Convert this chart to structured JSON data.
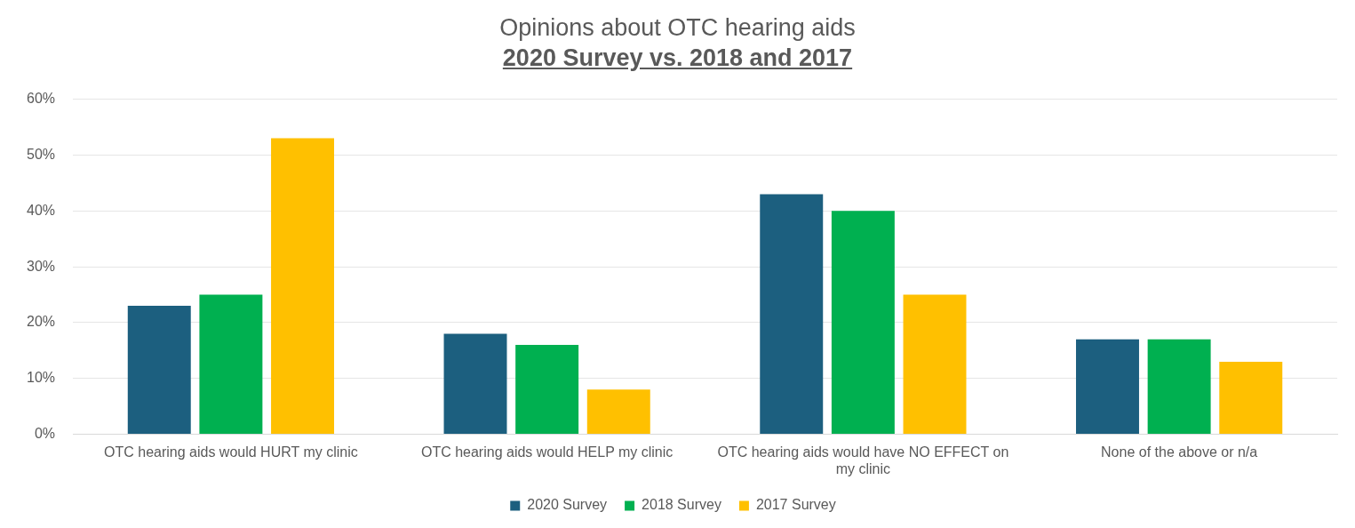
{
  "chart_data": {
    "type": "bar",
    "title": "Opinions about OTC hearing aids",
    "subtitle": "2020 Survey vs. 2018 and 2017",
    "categories": [
      "OTC hearing aids would HURT my clinic",
      "OTC hearing aids would HELP my clinic",
      "OTC hearing aids would have NO EFFECT on my clinic",
      "None of the above or n/a"
    ],
    "series": [
      {
        "name": "2020 Survey",
        "color": "#1c5f7f",
        "values": [
          23,
          18,
          43,
          17
        ]
      },
      {
        "name": "2018 Survey",
        "color": "#00b050",
        "values": [
          25,
          16,
          40,
          17
        ]
      },
      {
        "name": "2017 Survey",
        "color": "#ffc000",
        "values": [
          53,
          8,
          25,
          13
        ]
      }
    ],
    "ylim": [
      0,
      60
    ],
    "yticks": [
      {
        "value": 0,
        "label": "0%"
      },
      {
        "value": 10,
        "label": "10%"
      },
      {
        "value": 20,
        "label": "20%"
      },
      {
        "value": 30,
        "label": "30%"
      },
      {
        "value": 40,
        "label": "40%"
      },
      {
        "value": 50,
        "label": "50%"
      },
      {
        "value": 60,
        "label": "60%"
      }
    ],
    "grid": "y",
    "legend": "bottom"
  }
}
